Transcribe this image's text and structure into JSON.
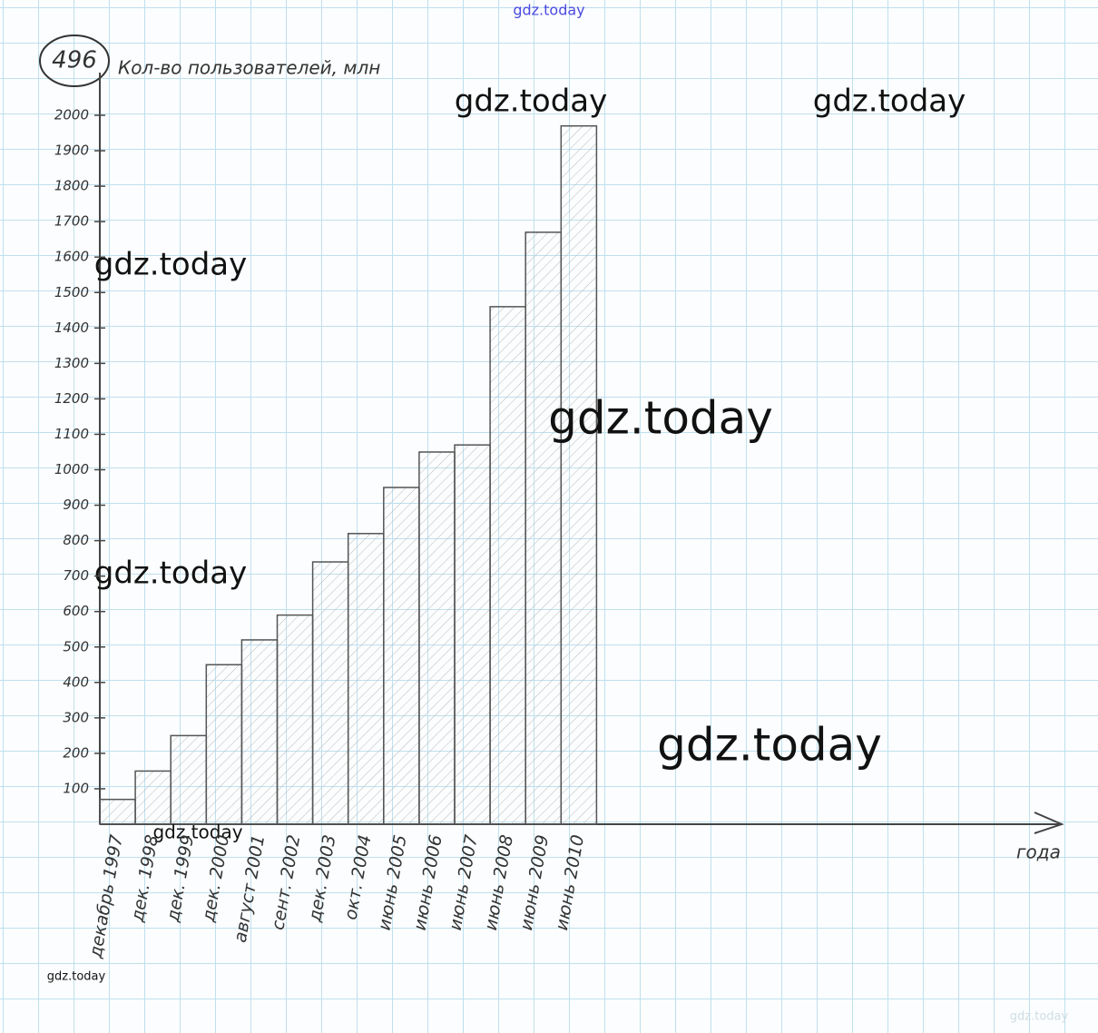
{
  "chart_data": {
    "type": "bar",
    "number": "496",
    "title": "Кол-во пользователей, млн",
    "x_label": "года",
    "categories": [
      "декабрь 1997",
      "дек. 1998",
      "дек. 1999",
      "дек. 2000",
      "август 2001",
      "сент. 2002",
      "дек. 2003",
      "окт. 2004",
      "июнь 2005",
      "июнь 2006",
      "июнь 2007",
      "июнь 2008",
      "июнь 2009",
      "июнь 2010"
    ],
    "values": [
      70,
      150,
      250,
      450,
      520,
      590,
      740,
      820,
      950,
      1050,
      1070,
      1460,
      1670,
      1970
    ],
    "color": "#555555",
    "ylim": [
      0,
      2000
    ],
    "yticks": [
      100,
      200,
      300,
      400,
      500,
      600,
      700,
      800,
      900,
      1000,
      1100,
      1200,
      1300,
      1400,
      1500,
      1600,
      1700,
      1800,
      1900,
      2000
    ]
  },
  "watermarks": [
    "gdz.today",
    "gdz.today",
    "gdz.today",
    "gdz.today",
    "gdz.today",
    "gdz.today",
    "gdz.today",
    "gdz.today",
    "gdz.today",
    "gdz.today"
  ]
}
